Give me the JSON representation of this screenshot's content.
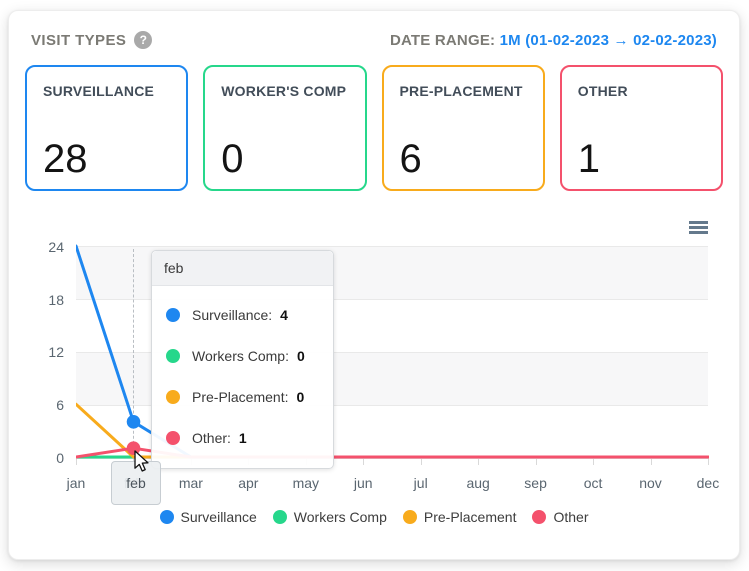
{
  "header": {
    "title": "VISIT TYPES",
    "help_icon": "?",
    "date_range_label": "DATE RANGE:",
    "date_range_value": "1M (01-02-2023 → 02-02-2023)"
  },
  "cards": [
    {
      "label": "SURVEILLANCE",
      "value": "28",
      "color": "#1e87f0"
    },
    {
      "label": "WORKER'S COMP",
      "value": "0",
      "color": "#26d78b"
    },
    {
      "label": "PRE-PLACEMENT",
      "value": "6",
      "color": "#f8ab1c"
    },
    {
      "label": "OTHER",
      "value": "1",
      "color": "#f4516c"
    }
  ],
  "chart_data": {
    "type": "line",
    "x": [
      "jan",
      "feb",
      "mar",
      "apr",
      "may",
      "jun",
      "jul",
      "aug",
      "sep",
      "oct",
      "nov",
      "dec"
    ],
    "series": [
      {
        "name": "Surveillance",
        "color": "#1e87f0",
        "values": [
          24,
          4,
          0,
          0,
          0,
          0,
          0,
          0,
          0,
          0,
          0,
          0
        ]
      },
      {
        "name": "Workers Comp",
        "color": "#26d78b",
        "values": [
          0,
          0,
          0,
          0,
          0,
          0,
          0,
          0,
          0,
          0,
          0,
          0
        ]
      },
      {
        "name": "Pre-Placement",
        "color": "#f8ab1c",
        "values": [
          6,
          0,
          0,
          0,
          0,
          0,
          0,
          0,
          0,
          0,
          0,
          0
        ]
      },
      {
        "name": "Other",
        "color": "#f4516c",
        "values": [
          0,
          1,
          0,
          0,
          0,
          0,
          0,
          0,
          0,
          0,
          0,
          0
        ]
      }
    ],
    "yticks": [
      0,
      6,
      12,
      18,
      24
    ],
    "ylim": [
      0,
      24
    ],
    "grid": "horizontal-bands",
    "legend_position": "bottom",
    "title": "",
    "xlabel": "",
    "ylabel": ""
  },
  "tooltip": {
    "header": "feb",
    "rows": [
      {
        "label": "Surveillance:",
        "value": "4"
      },
      {
        "label": "Workers Comp:",
        "value": "0"
      },
      {
        "label": "Pre-Placement:",
        "value": "0"
      },
      {
        "label": "Other:",
        "value": "1"
      }
    ]
  },
  "highlight": {
    "month": "feb",
    "month_index": 1,
    "marker_series": [
      0,
      3
    ]
  },
  "legend": [
    {
      "label": "Surveillance"
    },
    {
      "label": "Workers Comp"
    },
    {
      "label": "Pre-Placement"
    },
    {
      "label": "Other"
    }
  ],
  "menu_icon": "hamburger-chart-context-menu"
}
